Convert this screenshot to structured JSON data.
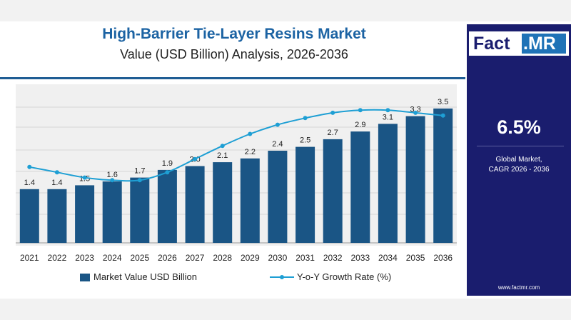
{
  "header": {
    "title": "High-Barrier Tie-Layer Resins Market",
    "subtitle": "Value (USD Billion) Analysis, 2026-2036"
  },
  "brand": {
    "logo_left": "Fact",
    "logo_right": ".MR",
    "website": "www.factmr.com"
  },
  "sidebar": {
    "cagr_value": "6.5%",
    "cagr_label_line1": "Global Market,",
    "cagr_label_line2": "CAGR 2026 - 2036"
  },
  "colors": {
    "bar": "#1a5585",
    "line": "#1e9fd4",
    "sidebar": "#1a1d6e",
    "title": "#1c63a3"
  },
  "chart_data": {
    "type": "bar",
    "categories": [
      "2021",
      "2022",
      "2023",
      "2024",
      "2025",
      "2026",
      "2027",
      "2028",
      "2029",
      "2030",
      "2031",
      "2032",
      "2033",
      "2034",
      "2035",
      "2036"
    ],
    "series": [
      {
        "name": "Market Value USD Billion",
        "values": [
          1.4,
          1.4,
          1.5,
          1.6,
          1.7,
          1.9,
          2.0,
          2.1,
          2.2,
          2.4,
          2.5,
          2.7,
          2.9,
          3.1,
          3.3,
          3.5
        ],
        "labels": [
          "1.4",
          "1.4",
          "1.5",
          "1.6",
          "1.7",
          "1.9",
          "2.0",
          "2.1",
          "2.2",
          "2.4",
          "2.5",
          "2.7",
          "2.9",
          "3.1",
          "3.3",
          "3.5"
        ]
      },
      {
        "name": "Y-o-Y Growth Rate (%)",
        "type": "line",
        "values": [
          5.2,
          4.8,
          4.4,
          4.2,
          4.2,
          4.8,
          5.8,
          6.8,
          7.7,
          8.4,
          8.9,
          9.3,
          9.5,
          9.5,
          9.3,
          9.1
        ]
      }
    ],
    "ylim": [
      0,
      4
    ],
    "grid": true,
    "legend_position": "bottom"
  }
}
